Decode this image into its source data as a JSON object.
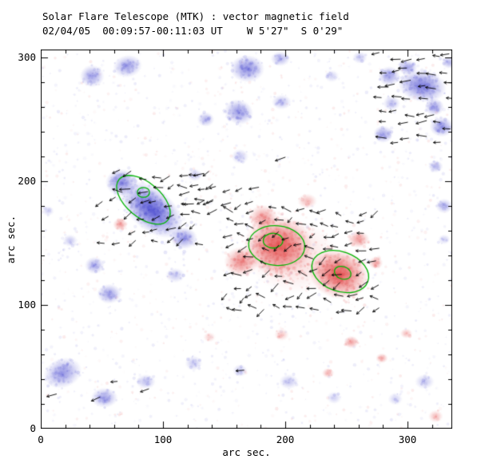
{
  "chart_data": {
    "type": "heatmap",
    "title": "Solar Flare Telescope (MTK) : vector magnetic field",
    "subtitle": "02/04/05  00:09:57-00:11:03 UT    W 5'27\"  S 0'29\"",
    "xlabel": "arc sec.",
    "ylabel": "arc sec.",
    "xlim": [
      0,
      336.6
    ],
    "ylim": [
      0,
      306.5
    ],
    "xticks": [
      0,
      100,
      200,
      300
    ],
    "yticks": [
      0,
      100,
      200,
      300
    ],
    "minor_tick_step": 20,
    "grid": false,
    "legend": false,
    "colors": {
      "negative": "#3838cc",
      "positive": "#e03333",
      "contour": "#00b400",
      "vector": "#000000",
      "frame": "#000000",
      "background": "#ffffff"
    },
    "noise_seed": 11,
    "background_speckle": {
      "count": 1600,
      "blue_fraction": 0.62
    },
    "blobs": [
      {
        "x": 42,
        "y": 285,
        "rx": 10,
        "ry": 9,
        "rot": 0,
        "a": 0.5,
        "p": "n"
      },
      {
        "x": 71,
        "y": 293,
        "rx": 12,
        "ry": 9,
        "rot": 10,
        "a": 0.5,
        "p": "n"
      },
      {
        "x": 169,
        "y": 291,
        "rx": 14,
        "ry": 11,
        "rot": 0,
        "a": 0.6,
        "p": "n"
      },
      {
        "x": 196,
        "y": 299,
        "rx": 8,
        "ry": 6,
        "rot": 0,
        "a": 0.4,
        "p": "n"
      },
      {
        "x": 162,
        "y": 256,
        "rx": 12,
        "ry": 10,
        "rot": -20,
        "a": 0.55,
        "p": "n"
      },
      {
        "x": 135,
        "y": 250,
        "rx": 7,
        "ry": 6,
        "rot": 0,
        "a": 0.4,
        "p": "n"
      },
      {
        "x": 285,
        "y": 285,
        "rx": 9,
        "ry": 8,
        "rot": 0,
        "a": 0.5,
        "p": "n"
      },
      {
        "x": 312,
        "y": 277,
        "rx": 20,
        "ry": 13,
        "rot": -10,
        "a": 0.7,
        "p": "n"
      },
      {
        "x": 300,
        "y": 292,
        "rx": 8,
        "ry": 6,
        "rot": 0,
        "a": 0.5,
        "p": "n"
      },
      {
        "x": 334,
        "y": 296,
        "rx": 6,
        "ry": 5,
        "rot": 0,
        "a": 0.4,
        "p": "n"
      },
      {
        "x": 322,
        "y": 260,
        "rx": 8,
        "ry": 7,
        "rot": 0,
        "a": 0.5,
        "p": "n"
      },
      {
        "x": 328,
        "y": 244,
        "rx": 10,
        "ry": 8,
        "rot": 0,
        "a": 0.55,
        "p": "n"
      },
      {
        "x": 280,
        "y": 238,
        "rx": 8,
        "ry": 7,
        "rot": 0,
        "a": 0.5,
        "p": "n"
      },
      {
        "x": 287,
        "y": 263,
        "rx": 7,
        "ry": 6,
        "rot": 0,
        "a": 0.35,
        "p": "n"
      },
      {
        "x": 91,
        "y": 177,
        "rx": 30,
        "ry": 17,
        "rot": -40,
        "a": 0.85,
        "p": "n"
      },
      {
        "x": 66,
        "y": 199,
        "rx": 13,
        "ry": 11,
        "rot": 0,
        "a": 0.6,
        "p": "n"
      },
      {
        "x": 117,
        "y": 154,
        "rx": 11,
        "ry": 9,
        "rot": 0,
        "a": 0.55,
        "p": "n"
      },
      {
        "x": 44,
        "y": 132,
        "rx": 8,
        "ry": 7,
        "rot": 0,
        "a": 0.45,
        "p": "n"
      },
      {
        "x": 56,
        "y": 109,
        "rx": 10,
        "ry": 8,
        "rot": 0,
        "a": 0.5,
        "p": "n"
      },
      {
        "x": 24,
        "y": 152,
        "rx": 6,
        "ry": 5,
        "rot": 0,
        "a": 0.3,
        "p": "n"
      },
      {
        "x": 6,
        "y": 176,
        "rx": 5,
        "ry": 4,
        "rot": 0,
        "a": 0.25,
        "p": "n"
      },
      {
        "x": 18,
        "y": 45,
        "rx": 16,
        "ry": 12,
        "rot": 20,
        "a": 0.55,
        "p": "n"
      },
      {
        "x": 52,
        "y": 25,
        "rx": 11,
        "ry": 8,
        "rot": 0,
        "a": 0.5,
        "p": "n"
      },
      {
        "x": 86,
        "y": 38,
        "rx": 8,
        "ry": 6,
        "rot": 0,
        "a": 0.35,
        "p": "n"
      },
      {
        "x": 125,
        "y": 53,
        "rx": 7,
        "ry": 6,
        "rot": 0,
        "a": 0.3,
        "p": "n"
      },
      {
        "x": 110,
        "y": 124,
        "rx": 8,
        "ry": 6,
        "rot": 0,
        "a": 0.3,
        "p": "n"
      },
      {
        "x": 126,
        "y": 205,
        "rx": 6,
        "ry": 5,
        "rot": 0,
        "a": 0.3,
        "p": "n"
      },
      {
        "x": 163,
        "y": 220,
        "rx": 7,
        "ry": 6,
        "rot": 0,
        "a": 0.3,
        "p": "n"
      },
      {
        "x": 197,
        "y": 264,
        "rx": 8,
        "ry": 6,
        "rot": 0,
        "a": 0.35,
        "p": "n"
      },
      {
        "x": 238,
        "y": 285,
        "rx": 6,
        "ry": 5,
        "rot": 0,
        "a": 0.25,
        "p": "n"
      },
      {
        "x": 261,
        "y": 300,
        "rx": 6,
        "ry": 5,
        "rot": 0,
        "a": 0.3,
        "p": "n"
      },
      {
        "x": 323,
        "y": 212,
        "rx": 6,
        "ry": 5,
        "rot": 0,
        "a": 0.4,
        "p": "n"
      },
      {
        "x": 330,
        "y": 180,
        "rx": 7,
        "ry": 6,
        "rot": 0,
        "a": 0.4,
        "p": "n"
      },
      {
        "x": 330,
        "y": 153,
        "rx": 5,
        "ry": 4,
        "rot": 0,
        "a": 0.25,
        "p": "n"
      },
      {
        "x": 203,
        "y": 38,
        "rx": 8,
        "ry": 6,
        "rot": 0,
        "a": 0.3,
        "p": "n"
      },
      {
        "x": 163,
        "y": 47,
        "rx": 6,
        "ry": 5,
        "rot": 0,
        "a": 0.3,
        "p": "n"
      },
      {
        "x": 240,
        "y": 25,
        "rx": 6,
        "ry": 5,
        "rot": 0,
        "a": 0.25,
        "p": "n"
      },
      {
        "x": 290,
        "y": 24,
        "rx": 6,
        "ry": 5,
        "rot": 0,
        "a": 0.25,
        "p": "n"
      },
      {
        "x": 314,
        "y": 38,
        "rx": 8,
        "ry": 6,
        "rot": 0,
        "a": 0.3,
        "p": "n"
      },
      {
        "x": 205,
        "y": 140,
        "rx": 38,
        "ry": 30,
        "rot": -10,
        "a": 0.22,
        "p": "p"
      },
      {
        "x": 194,
        "y": 148,
        "rx": 28,
        "ry": 24,
        "rot": 0,
        "a": 0.8,
        "p": "p"
      },
      {
        "x": 244,
        "y": 125,
        "rx": 25,
        "ry": 20,
        "rot": -15,
        "a": 0.85,
        "p": "p"
      },
      {
        "x": 164,
        "y": 135,
        "rx": 14,
        "ry": 12,
        "rot": 0,
        "a": 0.6,
        "p": "p"
      },
      {
        "x": 182,
        "y": 171,
        "rx": 12,
        "ry": 10,
        "rot": 0,
        "a": 0.5,
        "p": "p"
      },
      {
        "x": 218,
        "y": 184,
        "rx": 8,
        "ry": 6,
        "rot": 0,
        "a": 0.35,
        "p": "p"
      },
      {
        "x": 260,
        "y": 153,
        "rx": 9,
        "ry": 7,
        "rot": 0,
        "a": 0.5,
        "p": "p"
      },
      {
        "x": 274,
        "y": 134,
        "rx": 6,
        "ry": 5,
        "rot": 0,
        "a": 0.45,
        "p": "p"
      },
      {
        "x": 65,
        "y": 165,
        "rx": 6,
        "ry": 5,
        "rot": 0,
        "a": 0.5,
        "p": "p"
      },
      {
        "x": 254,
        "y": 70,
        "rx": 6,
        "ry": 5,
        "rot": 0,
        "a": 0.5,
        "p": "p"
      },
      {
        "x": 279,
        "y": 57,
        "rx": 5,
        "ry": 4,
        "rot": 0,
        "a": 0.45,
        "p": "p"
      },
      {
        "x": 235,
        "y": 45,
        "rx": 5,
        "ry": 4,
        "rot": 0,
        "a": 0.4,
        "p": "p"
      },
      {
        "x": 299,
        "y": 77,
        "rx": 5,
        "ry": 4,
        "rot": 0,
        "a": 0.35,
        "p": "p"
      },
      {
        "x": 197,
        "y": 76,
        "rx": 6,
        "ry": 5,
        "rot": 0,
        "a": 0.3,
        "p": "p"
      },
      {
        "x": 138,
        "y": 74,
        "rx": 5,
        "ry": 4,
        "rot": 0,
        "a": 0.25,
        "p": "p"
      },
      {
        "x": 323,
        "y": 10,
        "rx": 6,
        "ry": 5,
        "rot": 0,
        "a": 0.35,
        "p": "p"
      }
    ],
    "contours": [
      {
        "x": 84,
        "y": 185,
        "rx": 26,
        "ry": 14,
        "rot": -40
      },
      {
        "x": 84,
        "y": 191,
        "rx": 5,
        "ry": 4,
        "rot": 0
      },
      {
        "x": 193,
        "y": 148,
        "rx": 23,
        "ry": 16,
        "rot": -5
      },
      {
        "x": 245,
        "y": 127,
        "rx": 24,
        "ry": 16,
        "rot": -20
      },
      {
        "x": 190,
        "y": 152,
        "rx": 8,
        "ry": 6,
        "rot": 0
      },
      {
        "x": 247,
        "y": 126,
        "rx": 7,
        "ry": 5,
        "rot": -20
      }
    ],
    "vectors": {
      "clusters": [
        {
          "x0": 50,
          "x1": 140,
          "y0": 150,
          "y1": 212,
          "step": 11,
          "angle": 195,
          "spread": 70,
          "keep": 0.8
        },
        {
          "x0": 118,
          "x1": 175,
          "y0": 182,
          "y1": 200,
          "step": 11,
          "angle": 200,
          "spread": 40,
          "keep": 0.9
        },
        {
          "x0": 152,
          "x1": 272,
          "y0": 96,
          "y1": 178,
          "step": 10,
          "angle": 190,
          "spread": 90,
          "keep": 0.75
        },
        {
          "x0": 277,
          "x1": 334,
          "y0": 234,
          "y1": 301,
          "step": 11,
          "angle": 182,
          "spread": 28,
          "keep": 0.85
        }
      ],
      "singles": [
        {
          "x": 9,
          "y": 27,
          "angle": 195
        },
        {
          "x": 45,
          "y": 24,
          "angle": 205
        },
        {
          "x": 60,
          "y": 38,
          "angle": 185
        },
        {
          "x": 85,
          "y": 31,
          "angle": 200
        },
        {
          "x": 163,
          "y": 47,
          "angle": 185
        },
        {
          "x": 125,
          "y": 205,
          "angle": 175
        },
        {
          "x": 196,
          "y": 218,
          "angle": 200
        }
      ]
    }
  }
}
